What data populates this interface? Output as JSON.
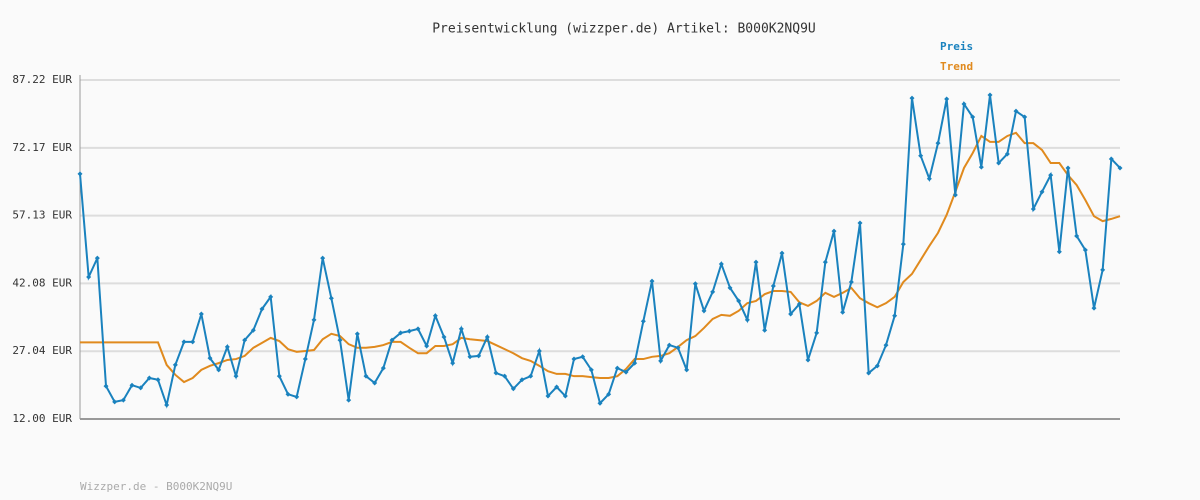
{
  "chart_data": {
    "type": "line",
    "title": "Preisentwicklung (wizzper.de) Artikel: B000K2NQ9U",
    "footer": "Wizzper.de - B000K2NQ9U",
    "ylim": [
      12.0,
      87.22
    ],
    "yticks": [
      {
        "value": 12.0,
        "label": "12.00 EUR"
      },
      {
        "value": 27.04,
        "label": "27.04 EUR"
      },
      {
        "value": 42.08,
        "label": "42.08 EUR"
      },
      {
        "value": 57.13,
        "label": "57.13 EUR"
      },
      {
        "value": 72.17,
        "label": "72.17 EUR"
      },
      {
        "value": 87.22,
        "label": "87.22 EUR"
      }
    ],
    "grid": true,
    "series": [
      {
        "name": "Preis",
        "color": "#1a82be",
        "markers": true,
        "values": [
          66.4,
          43.5,
          47.7,
          19.3,
          15.8,
          16.2,
          19.5,
          18.9,
          21.1,
          20.7,
          15.1,
          24.0,
          29.1,
          29.1,
          35.3,
          25.5,
          22.9,
          28.0,
          21.5,
          29.5,
          31.7,
          36.4,
          39.1,
          21.5,
          17.5,
          16.9,
          25.3,
          34.0,
          47.7,
          38.8,
          29.5,
          16.2,
          30.9,
          21.5,
          20.0,
          23.3,
          29.5,
          31.1,
          31.5,
          32.0,
          28.2,
          34.9,
          30.2,
          24.4,
          32.0,
          25.8,
          26.0,
          30.2,
          22.2,
          21.5,
          18.7,
          20.7,
          21.5,
          27.1,
          17.1,
          19.1,
          17.1,
          25.3,
          25.8,
          22.9,
          15.5,
          17.5,
          23.3,
          22.4,
          24.4,
          33.7,
          42.6,
          24.9,
          28.4,
          27.8,
          22.9,
          42.0,
          36.0,
          40.2,
          46.4,
          41.1,
          38.2,
          34.0,
          46.8,
          31.7,
          41.5,
          48.8,
          35.3,
          37.5,
          25.1,
          31.1,
          46.8,
          53.7,
          35.7,
          42.4,
          55.5,
          22.2,
          23.8,
          28.4,
          34.9,
          50.8,
          83.2,
          70.4,
          65.3,
          73.2,
          83.0,
          61.7,
          81.9,
          79.0,
          67.9,
          83.9,
          68.8,
          70.8,
          80.3,
          79.0,
          58.6,
          62.4,
          66.1,
          49.1,
          67.7,
          52.6,
          49.5,
          36.6,
          45.1,
          69.7,
          67.7
        ]
      },
      {
        "name": "Trend",
        "color": "#e08a1e",
        "markers": false,
        "values": [
          29.0,
          29.0,
          29.0,
          29.0,
          29.0,
          29.0,
          29.0,
          29.0,
          29.0,
          29.0,
          24.0,
          21.8,
          20.2,
          21.1,
          22.9,
          23.8,
          24.4,
          25.1,
          25.3,
          26.0,
          27.8,
          28.9,
          30.0,
          29.3,
          27.5,
          26.9,
          27.1,
          27.3,
          29.7,
          30.9,
          30.4,
          28.6,
          27.8,
          27.8,
          28.0,
          28.4,
          29.1,
          29.1,
          27.8,
          26.6,
          26.6,
          28.2,
          28.2,
          28.6,
          30.0,
          29.7,
          29.5,
          29.3,
          28.4,
          27.5,
          26.6,
          25.5,
          24.9,
          23.8,
          22.6,
          22.0,
          22.0,
          21.5,
          21.5,
          21.3,
          21.1,
          21.1,
          21.5,
          23.1,
          25.3,
          25.3,
          25.8,
          26.0,
          26.6,
          28.0,
          29.5,
          30.4,
          32.2,
          34.2,
          35.1,
          34.9,
          36.0,
          37.7,
          38.2,
          39.7,
          40.4,
          40.4,
          40.2,
          37.9,
          37.1,
          38.2,
          40.0,
          39.1,
          40.0,
          41.1,
          38.8,
          37.7,
          36.8,
          37.7,
          39.1,
          42.4,
          44.2,
          47.3,
          50.4,
          53.3,
          57.3,
          62.4,
          67.7,
          71.0,
          74.8,
          73.5,
          73.5,
          74.8,
          75.5,
          73.2,
          73.2,
          71.7,
          68.8,
          68.8,
          66.1,
          63.9,
          60.6,
          57.0,
          55.9,
          56.4,
          57.0
        ]
      }
    ]
  }
}
